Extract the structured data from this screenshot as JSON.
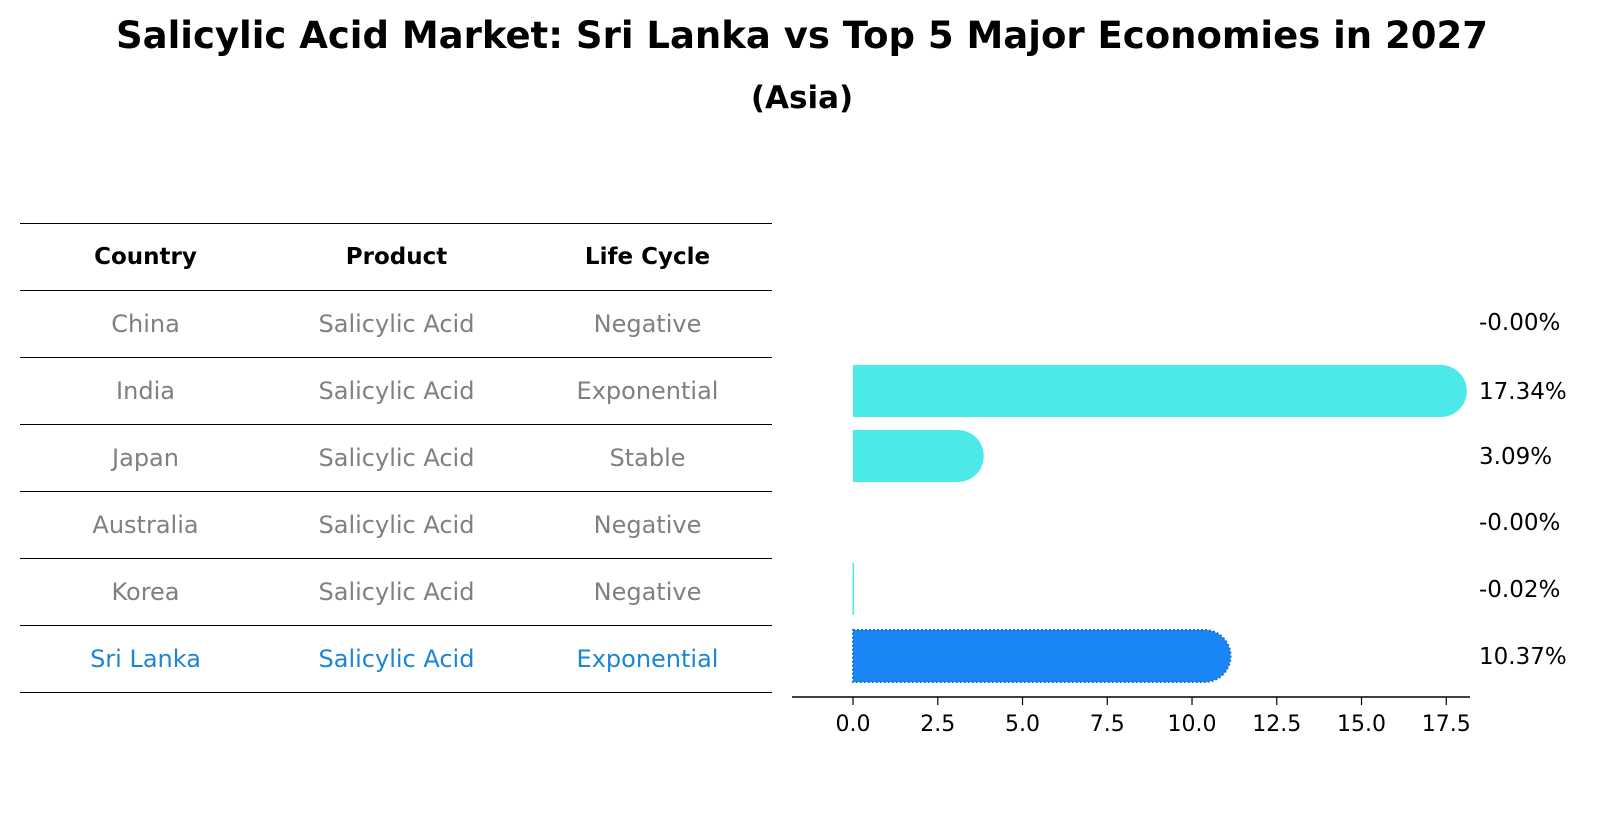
{
  "title": "Salicylic Acid Market: Sri Lanka vs Top 5 Major Economies in 2027",
  "subtitle": "(Asia)",
  "table": {
    "headers": [
      "Country",
      "Product",
      "Life Cycle"
    ],
    "rows": [
      [
        "China",
        "Salicylic Acid",
        "Negative"
      ],
      [
        "India",
        "Salicylic Acid",
        "Exponential"
      ],
      [
        "Japan",
        "Salicylic Acid",
        "Stable"
      ],
      [
        "Australia",
        "Salicylic Acid",
        "Negative"
      ],
      [
        "Korea",
        "Salicylic Acid",
        "Negative"
      ],
      [
        "Sri Lanka",
        "Salicylic Acid",
        "Exponential"
      ]
    ],
    "highlight_row": 5
  },
  "colors": {
    "bar": "#4beae8",
    "highlight_bar": "#1a86f5",
    "highlight_text": "#1c86d2",
    "muted_text": "#808080"
  },
  "chart_data": {
    "type": "bar",
    "orientation": "horizontal",
    "categories": [
      "China",
      "India",
      "Japan",
      "Australia",
      "Korea",
      "Sri Lanka"
    ],
    "values": [
      -0.0,
      17.34,
      3.09,
      -0.0,
      -0.02,
      10.37
    ],
    "value_labels": [
      "-0.00%",
      "17.34%",
      "3.09%",
      "-0.00%",
      "-0.02%",
      "10.37%"
    ],
    "highlight": "Sri Lanka",
    "xlim": [
      -1.8,
      18.2
    ],
    "xticks": [
      0.0,
      2.5,
      5.0,
      7.5,
      10.0,
      12.5,
      15.0,
      17.5
    ],
    "xtick_labels": [
      "0.0",
      "2.5",
      "5.0",
      "7.5",
      "10.0",
      "12.5",
      "15.0",
      "17.5"
    ],
    "xlabel": "",
    "ylabel": "",
    "grid": false
  }
}
